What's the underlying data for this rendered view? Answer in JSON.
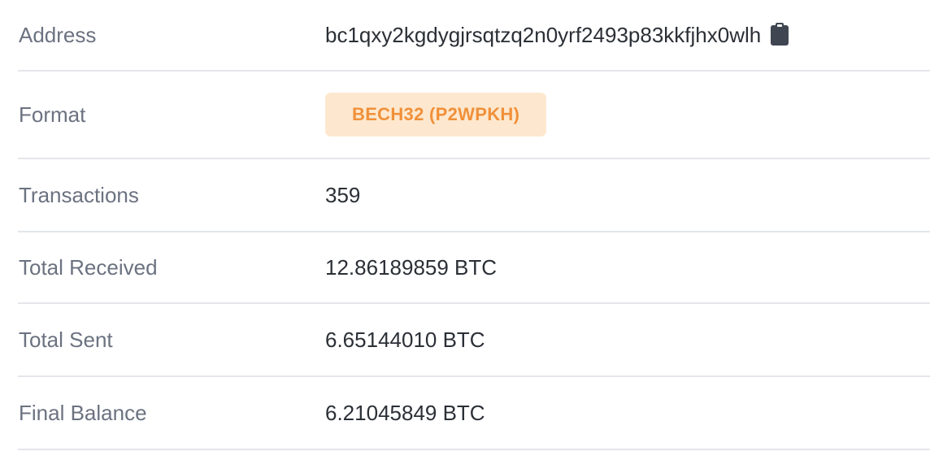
{
  "address": {
    "label": "Address",
    "value": "bc1qxy2kgdygjrsqtzq2n0yrf2493p83kkfjhx0wlh",
    "copy_icon": "clipboard-icon"
  },
  "format": {
    "label": "Format",
    "value": "BECH32 (P2WPKH)",
    "badge_bg": "#fde8cf",
    "badge_text_color": "#f0903a"
  },
  "transactions": {
    "label": "Transactions",
    "value": "359"
  },
  "total_received": {
    "label": "Total Received",
    "value": "12.86189859 BTC"
  },
  "total_sent": {
    "label": "Total Sent",
    "value": "6.65144010 BTC"
  },
  "final_balance": {
    "label": "Final Balance",
    "value": "6.21045849 BTC"
  }
}
